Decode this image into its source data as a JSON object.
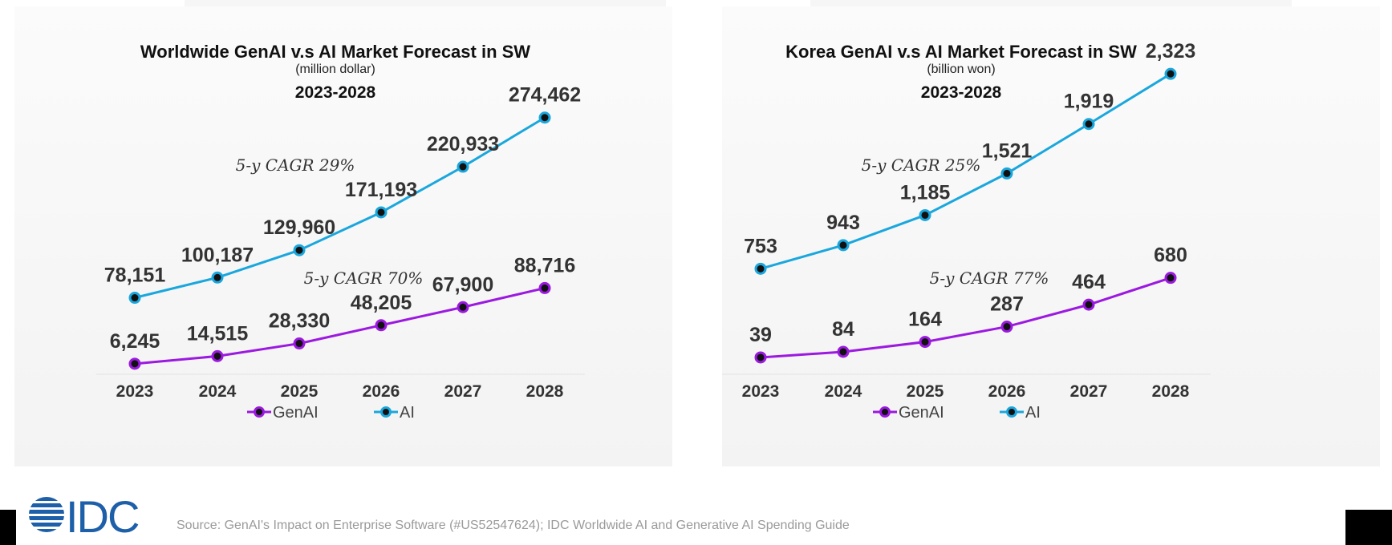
{
  "colors": {
    "genai": "#9b19e0",
    "ai": "#1aa7dd",
    "marker_fill": "#111111"
  },
  "legend": {
    "genai_label": "GenAI",
    "ai_label": "AI"
  },
  "chart_data": [
    {
      "type": "line",
      "title": "Worldwide GenAI v.s AI Market Forecast in SW",
      "subtitle": "(million dollar)",
      "period": "2023-2028",
      "categories": [
        "2023",
        "2024",
        "2025",
        "2026",
        "2027",
        "2028"
      ],
      "series": [
        {
          "name": "GenAI",
          "values": [
            6245,
            14515,
            28330,
            48205,
            67900,
            88716
          ],
          "labels": [
            "6,245",
            "14,515",
            "28,330",
            "48,205",
            "67,900",
            "88,716"
          ]
        },
        {
          "name": "AI",
          "values": [
            78151,
            100187,
            129960,
            171193,
            220933,
            274462
          ],
          "labels": [
            "78,151",
            "100,187",
            "129,960",
            "171,193",
            "220,933",
            "274,462"
          ]
        }
      ],
      "annotations": {
        "ai_cagr": "5-y CAGR 29%",
        "genai_cagr": "5-y CAGR 70%"
      },
      "grid": false
    },
    {
      "type": "line",
      "title": "Korea GenAI v.s AI Market Forecast in SW",
      "subtitle": "(billion won)",
      "period": "2023-2028",
      "categories": [
        "2023",
        "2024",
        "2025",
        "2026",
        "2027",
        "2028"
      ],
      "series": [
        {
          "name": "GenAI",
          "values": [
            39,
            84,
            164,
            287,
            464,
            680
          ],
          "labels": [
            "39",
            "84",
            "164",
            "287",
            "464",
            "680"
          ]
        },
        {
          "name": "AI",
          "values": [
            753,
            943,
            1185,
            1521,
            1919,
            2323
          ],
          "labels": [
            "753",
            "943",
            "1,185",
            "1,521",
            "1,919",
            "2,323"
          ]
        }
      ],
      "annotations": {
        "ai_cagr": "5-y CAGR 25%",
        "genai_cagr": "5-y CAGR 77%"
      },
      "grid": false
    }
  ],
  "footer": {
    "logo_text": "IDC",
    "source": "Source: GenAI's Impact on Enterprise Software (#US52547624); IDC Worldwide AI and Generative AI Spending Guide"
  }
}
